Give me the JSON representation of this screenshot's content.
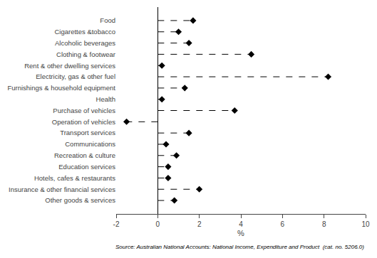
{
  "chart_data": {
    "type": "lollipop",
    "orientation": "horizontal",
    "categories": [
      "Food",
      "Cigarettes &tobacco",
      "Alcoholic beverages",
      "Clothing & footwear",
      "Rent & other dwelling services",
      "Electricity, gas & other fuel",
      "Furnishings & household equipment",
      "Health",
      "Purchase of vehicles",
      "Operation of vehicles",
      "Transport services",
      "Communications",
      "Recreation & culture",
      "Education services",
      "Hotels, cafes & restaurants",
      "Insurance & other financial services",
      "Other goods & services"
    ],
    "values": [
      1.7,
      1.0,
      1.5,
      4.5,
      0.2,
      8.2,
      1.3,
      0.2,
      3.7,
      -1.5,
      1.5,
      0.4,
      0.9,
      0.5,
      0.5,
      2.0,
      0.8
    ],
    "xlim": [
      -2,
      10
    ],
    "xticks": [
      -2,
      0,
      2,
      4,
      6,
      8,
      10
    ],
    "xlabel": "%",
    "annotations": [
      "Source: Australian National Accounts: National Income, Expenditure and Product  (cat. no. 5206.0)"
    ],
    "color": "#000000",
    "marker": "diamond",
    "line_style": "dashed",
    "grid": false
  }
}
